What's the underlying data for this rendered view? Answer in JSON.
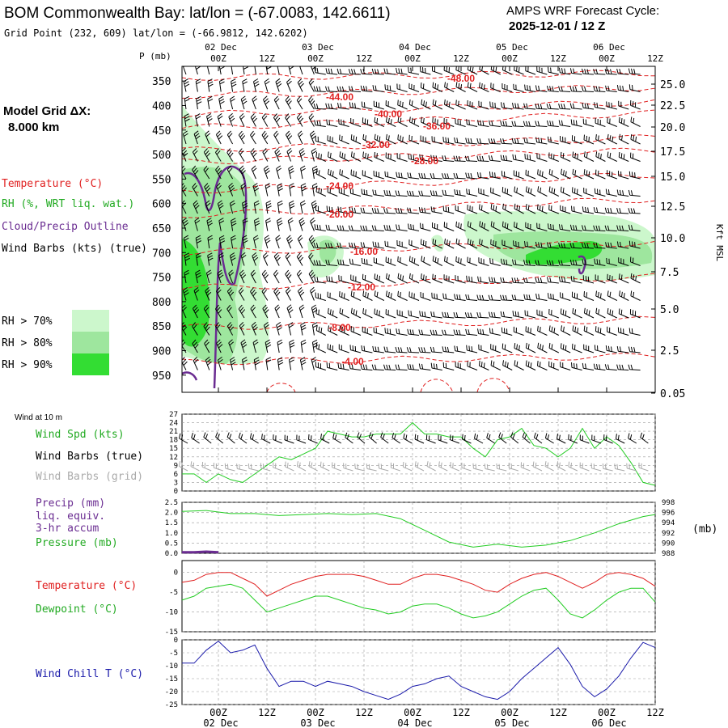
{
  "header": {
    "title": "BOM Commonwealth Bay:  lat/lon = (-67.0083, 142.6611)",
    "cycle_line1": "AMPS WRF Forecast Cycle:",
    "cycle_line2": "2025-12-01 / 12  Z",
    "grid_point": "Grid Point (232, 609) lat/lon = (-66.9812, 142.6202)"
  },
  "left_legend": {
    "model_grid_line1": "Model Grid ΔX:",
    "model_grid_line2": "8.000 km",
    "temperature": "Temperature (°C)",
    "rh": "RH (%, WRT liq. wat.)",
    "cloud": "Cloud/Precip Outline",
    "wind_barbs": "Wind Barbs (kts) (true)",
    "rh70": "RH > 70%",
    "rh80": "RH > 80%",
    "rh90": "RH > 90%",
    "pmb_label": "P (mb)",
    "kft_label": "Kft MSL"
  },
  "colors": {
    "temp": "#e02020",
    "rh70": "#ccf7cc",
    "rh80": "#9ee69e",
    "rh90": "#33dd33",
    "cloud": "#6a2c91",
    "dewpoint": "#22cc22",
    "windchill": "#1a1aaa",
    "grid_barbs": "#aaaaaa"
  },
  "time_axis": {
    "top_days": [
      "02 Dec",
      "03 Dec",
      "04 Dec",
      "05 Dec",
      "06 Dec"
    ],
    "hour_labels": [
      "00Z",
      "12Z",
      "00Z",
      "12Z",
      "00Z",
      "12Z",
      "00Z",
      "12Z",
      "00Z",
      "12Z"
    ]
  },
  "chart_data": [
    {
      "type": "heatmap",
      "name": "cross-section",
      "y_axis_label": "P (mb)",
      "y_ticks": [
        "350",
        "400",
        "450",
        "500",
        "550",
        "600",
        "650",
        "700",
        "750",
        "800",
        "850",
        "900",
        "950"
      ],
      "y2_ticks": [
        "25.0",
        "22.5",
        "20.0",
        "17.5",
        "15.0",
        "12.5",
        "10.0",
        "7.5",
        "5.0",
        "2.5",
        "0.05"
      ],
      "temperature_contours": [
        "-48.00",
        "-44.00",
        "-40.00",
        "-36.00",
        "-32.00",
        "-28.00",
        "-24.00",
        "-20.00",
        "-16.00",
        "-12.00",
        "-8.00",
        "-4.00"
      ]
    },
    {
      "type": "line",
      "name": "wind",
      "header": "Wind at 10 m",
      "labels": [
        "Wind Spd (kts)",
        "Wind Barbs (true)",
        "Wind Barbs (grid)"
      ],
      "y_ticks": [
        "27",
        "24",
        "21",
        "18",
        "15",
        "12",
        "9",
        "6",
        "3",
        "0"
      ],
      "ylim": [
        0,
        27
      ],
      "series": [
        {
          "name": "Wind Spd (kts)",
          "color": "#22cc22",
          "x": [
            0,
            3,
            6,
            9,
            12,
            15,
            18,
            21,
            24,
            27,
            30,
            33,
            36,
            39,
            42,
            45,
            48,
            51,
            54,
            57,
            60,
            63,
            66,
            69,
            72,
            75,
            78,
            81,
            84,
            87,
            90,
            93,
            96,
            99,
            102,
            105,
            108,
            111,
            114,
            117
          ],
          "values": [
            6,
            6,
            3,
            6,
            4,
            3,
            6,
            9,
            12,
            11,
            13,
            15,
            21,
            20,
            19,
            19,
            20,
            20,
            20,
            24,
            20,
            20,
            19,
            19,
            15,
            12,
            18,
            19,
            22,
            16,
            15,
            12,
            15,
            22,
            15,
            19,
            16,
            10,
            3,
            2
          ]
        }
      ]
    },
    {
      "type": "line",
      "name": "precip-pressure",
      "labels": [
        "Precip (mm)",
        "liq. equiv.",
        "3-hr accum",
        "Pressure (mb)"
      ],
      "y_ticks": [
        "2.5",
        "2.0",
        "1.5",
        "1.0",
        "0.5",
        "0.0"
      ],
      "y2_ticks": [
        "998",
        "996",
        "994",
        "992",
        "990",
        "988"
      ],
      "y2_unit": "(mb)",
      "ylim": [
        0,
        2.5
      ],
      "y2lim": [
        988,
        998
      ],
      "series": [
        {
          "name": "Pressure (mb)",
          "color": "#22cc22",
          "x": [
            0,
            6,
            12,
            18,
            24,
            30,
            36,
            42,
            48,
            54,
            60,
            66,
            72,
            78,
            84,
            90,
            96,
            102,
            108,
            114,
            117
          ],
          "values": [
            996.2,
            996.4,
            995.8,
            995.8,
            995.4,
            995.6,
            995.8,
            995.6,
            995.8,
            994.8,
            992.5,
            990.2,
            989.2,
            989.8,
            989.2,
            989.6,
            990.5,
            992.0,
            993.8,
            995.2,
            995.6
          ]
        },
        {
          "name": "Precip (mm)",
          "color": "#6a2c91",
          "x": [
            0,
            3,
            6,
            9
          ],
          "values": [
            0.05,
            0.05,
            0.08,
            0.05
          ]
        }
      ]
    },
    {
      "type": "line",
      "name": "temperature",
      "labels": [
        "Temperature (°C)",
        "Dewpoint (°C)"
      ],
      "y_ticks": [
        "0",
        "-5",
        "-10",
        "-15"
      ],
      "ylim": [
        -15,
        3
      ],
      "series": [
        {
          "name": "Temperature (°C)",
          "color": "#e02020",
          "x": [
            0,
            3,
            6,
            9,
            12,
            15,
            18,
            21,
            24,
            27,
            30,
            33,
            36,
            39,
            42,
            45,
            48,
            51,
            54,
            57,
            60,
            63,
            66,
            69,
            72,
            75,
            78,
            81,
            84,
            87,
            90,
            93,
            96,
            99,
            102,
            105,
            108,
            111,
            114,
            117
          ],
          "values": [
            -2.5,
            -2,
            -0.5,
            0,
            0,
            -1.5,
            -3,
            -6,
            -4.5,
            -3,
            -2,
            -1,
            -0.5,
            -0.5,
            -0.5,
            -1,
            -2,
            -3,
            -3,
            -1.5,
            -0.5,
            -0.5,
            -1,
            -2,
            -3,
            -4.5,
            -5,
            -3,
            -1.5,
            -0.5,
            0,
            -1,
            -2.5,
            -4,
            -2.5,
            -0.5,
            0,
            -0.5,
            -1.5,
            -3.5
          ]
        },
        {
          "name": "Dewpoint (°C)",
          "color": "#22cc22",
          "x": [
            0,
            3,
            6,
            9,
            12,
            15,
            18,
            21,
            24,
            27,
            30,
            33,
            36,
            39,
            42,
            45,
            48,
            51,
            54,
            57,
            60,
            63,
            66,
            69,
            72,
            75,
            78,
            81,
            84,
            87,
            90,
            93,
            96,
            99,
            102,
            105,
            108,
            111,
            114,
            117
          ],
          "values": [
            -7,
            -6,
            -4,
            -3.5,
            -3,
            -4,
            -7,
            -10,
            -9,
            -8,
            -7,
            -6,
            -6,
            -7,
            -8,
            -9,
            -9.5,
            -10.5,
            -10,
            -8.5,
            -8,
            -8,
            -9,
            -10.5,
            -11.5,
            -11,
            -10,
            -8,
            -6,
            -4.5,
            -4,
            -7,
            -10.5,
            -11.5,
            -9.5,
            -7,
            -5,
            -4,
            -4,
            -7.5
          ]
        }
      ]
    },
    {
      "type": "line",
      "name": "wind-chill",
      "labels": [
        "Wind Chill T (°C)"
      ],
      "y_ticks": [
        "0",
        "-5",
        "-10",
        "-15",
        "-20",
        "-25"
      ],
      "ylim": [
        -25,
        0
      ],
      "series": [
        {
          "name": "Wind Chill T (°C)",
          "color": "#1a1aaa",
          "x": [
            0,
            3,
            6,
            9,
            12,
            15,
            18,
            21,
            24,
            27,
            30,
            33,
            36,
            39,
            42,
            45,
            48,
            51,
            54,
            57,
            60,
            63,
            66,
            69,
            72,
            75,
            78,
            81,
            84,
            87,
            90,
            93,
            96,
            99,
            102,
            105,
            108,
            111,
            114,
            117
          ],
          "values": [
            -9,
            -9,
            -4,
            -0.5,
            -5,
            -4,
            -2,
            -11,
            -18,
            -16,
            -16,
            -18,
            -16,
            -17,
            -18,
            -20,
            -21.5,
            -23,
            -21,
            -18,
            -17,
            -15,
            -14,
            -18,
            -20,
            -22,
            -23,
            -20,
            -15,
            -11,
            -7,
            -3,
            -9.5,
            -18,
            -22,
            -19,
            -14,
            -7,
            -1,
            -3
          ]
        }
      ]
    }
  ]
}
